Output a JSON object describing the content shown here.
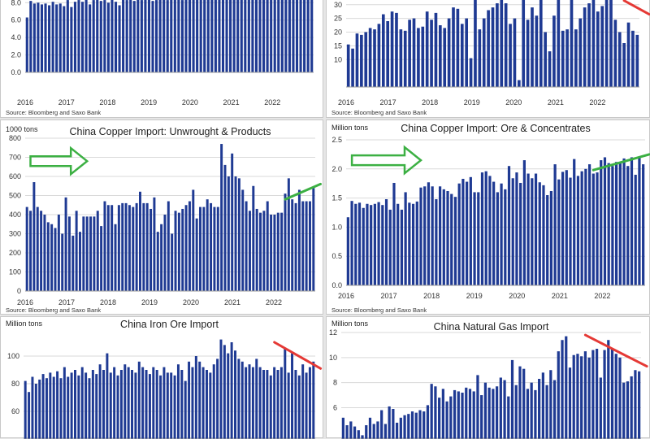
{
  "colors": {
    "bar": "#1f3a93",
    "up_arrow": "#3cb043",
    "down_line": "#e53935",
    "grid": "#d9d9d9",
    "axis_text": "#333333"
  },
  "chart_data": [
    {
      "id": "tl",
      "type": "bar",
      "title": "",
      "unit": "",
      "source": "Source: Bloomberg and Saxo Bank",
      "x_labels": [
        "2016",
        "2017",
        "2018",
        "2019",
        "2020",
        "2021",
        "2022"
      ],
      "ylim": [
        0,
        8.4
      ],
      "y_ticks": [
        0,
        2,
        4,
        6,
        8
      ],
      "y_tick_labels": [
        "0.0",
        "2.0",
        "4.0",
        "6.0",
        "8.0"
      ],
      "values": [
        6.3,
        8.2,
        7.9,
        8.0,
        7.8,
        7.9,
        7.7,
        8.1,
        7.8,
        7.9,
        7.6,
        8.3,
        7.5,
        8.1,
        8.3,
        8.1,
        8.4,
        7.8,
        8.3,
        8.4,
        8.2,
        8.3,
        8.0,
        8.4,
        8.1,
        7.7,
        8.4,
        8.3,
        8.4,
        8.2,
        8.4,
        8.3,
        8.4,
        8.4,
        8.2,
        8.3,
        8.4,
        8.4,
        8.3,
        8.4,
        8.4,
        8.4,
        8.3,
        8.4,
        8.4,
        8.4,
        8.4,
        8.4,
        8.4,
        8.4,
        8.4,
        8.4,
        8.4,
        8.4,
        8.4,
        8.4,
        8.4,
        8.4,
        8.4,
        8.4,
        8.4,
        8.4,
        8.4,
        8.4,
        8.4,
        8.4,
        8.4,
        8.4,
        8.4,
        8.4,
        8.4,
        8.4,
        8.4,
        8.4,
        8.4,
        8.4,
        8.4,
        8.4
      ],
      "grid": true
    },
    {
      "id": "tr",
      "type": "bar",
      "title": "",
      "unit": "",
      "source": "Source: Bloomberg and Saxo Bank",
      "x_labels": [
        "2016",
        "2017",
        "2018",
        "2019",
        "2020",
        "2021",
        "2022"
      ],
      "ylim": [
        0,
        32
      ],
      "y_ticks": [
        10,
        15,
        20,
        25,
        30
      ],
      "y_tick_labels": [
        "10",
        "15",
        "20",
        "25",
        "30"
      ],
      "values": [
        15.5,
        14.0,
        19.5,
        19.0,
        20.0,
        21.5,
        21.0,
        23.0,
        26.5,
        24.0,
        27.5,
        27.0,
        21.0,
        20.5,
        24.5,
        25.0,
        21.5,
        22.0,
        27.5,
        24.5,
        27.0,
        22.5,
        21.5,
        25.0,
        29.0,
        28.5,
        23.0,
        25.0,
        10.5,
        32.0,
        21.0,
        25.0,
        28.0,
        29.0,
        30.5,
        32.0,
        30.5,
        23.0,
        25.0,
        2.5,
        32.0,
        24.5,
        29.0,
        26.0,
        32.0,
        20.0,
        13.0,
        26.0,
        32.0,
        20.5,
        21.0,
        32.0,
        21.0,
        25.0,
        29.0,
        30.5,
        32.0,
        27.5,
        29.5,
        32.0,
        32.0,
        24.5,
        20.0,
        16.0,
        23.5,
        20.5,
        19.0
      ],
      "grid": true,
      "trend": {
        "type": "down",
        "from": [
          63,
          31.5
        ],
        "to": [
          67,
          26.5
        ]
      }
    },
    {
      "id": "ml",
      "type": "bar",
      "title": "China Copper Import: Unwrought & Products",
      "unit": "1000 tons",
      "source": "Source: Bloomberg and Saxo Bank",
      "x_labels": [
        "2016",
        "2017",
        "2018",
        "2019",
        "2020",
        "2021",
        "2022"
      ],
      "ylim": [
        0,
        800
      ],
      "y_ticks": [
        0,
        100,
        200,
        300,
        400,
        500,
        600,
        700,
        800
      ],
      "y_tick_labels": [
        "0",
        "100",
        "200",
        "300",
        "400",
        "500",
        "600",
        "700",
        "800"
      ],
      "values": [
        440,
        420,
        570,
        440,
        420,
        400,
        360,
        350,
        330,
        400,
        300,
        490,
        390,
        290,
        420,
        310,
        390,
        390,
        390,
        390,
        420,
        340,
        470,
        450,
        450,
        350,
        450,
        460,
        460,
        450,
        440,
        460,
        520,
        460,
        460,
        430,
        490,
        310,
        350,
        400,
        470,
        300,
        420,
        410,
        430,
        450,
        470,
        530,
        380,
        440,
        440,
        480,
        460,
        440,
        440,
        770,
        660,
        600,
        720,
        600,
        590,
        530,
        470,
        420,
        550,
        430,
        410,
        420,
        470,
        400,
        400,
        410,
        410,
        510,
        590,
        480,
        460,
        530,
        470,
        470,
        470,
        540
      ],
      "grid": true,
      "arrow": {
        "from": [
          1,
          680
        ],
        "to": [
          17,
          680
        ]
      },
      "trend": {
        "type": "up",
        "from": [
          73,
          480
        ],
        "to": [
          81,
          560
        ]
      }
    },
    {
      "id": "mr",
      "type": "bar",
      "title": "China Copper Import: Ore & Concentrates",
      "unit": "Million tons",
      "source": "Source: Bloomberg and Saxo Bank",
      "x_labels": [
        "2016",
        "2017",
        "2018",
        "2019",
        "2020",
        "2021",
        "2022"
      ],
      "ylim": [
        0,
        2.5
      ],
      "y_ticks": [
        0,
        0.5,
        1.0,
        1.5,
        2.0,
        2.5
      ],
      "y_tick_labels": [
        "0.0",
        "0.5",
        "1.0",
        "1.5",
        "2.0",
        "2.5"
      ],
      "values": [
        1.17,
        1.45,
        1.4,
        1.42,
        1.33,
        1.4,
        1.38,
        1.4,
        1.43,
        1.38,
        1.48,
        1.3,
        1.76,
        1.4,
        1.3,
        1.6,
        1.42,
        1.4,
        1.44,
        1.68,
        1.7,
        1.77,
        1.7,
        1.48,
        1.7,
        1.65,
        1.62,
        1.57,
        1.52,
        1.75,
        1.83,
        1.78,
        1.86,
        1.6,
        1.6,
        1.94,
        1.96,
        1.88,
        1.78,
        1.6,
        1.75,
        1.65,
        2.05,
        1.84,
        1.94,
        1.76,
        2.15,
        1.92,
        1.84,
        1.92,
        1.77,
        1.72,
        1.55,
        1.62,
        2.08,
        1.82,
        1.95,
        1.98,
        1.85,
        2.17,
        1.88,
        1.96,
        2.0,
        2.08,
        1.92,
        1.94,
        2.15,
        2.2,
        2.1,
        2.05,
        2.12,
        2.1,
        2.18,
        2.05,
        2.2,
        1.9,
        2.2,
        2.08
      ],
      "grid": true,
      "arrow": {
        "from": [
          1,
          2.15
        ],
        "to": [
          19,
          2.15
        ]
      },
      "trend": {
        "type": "up",
        "from": [
          64,
          1.98
        ],
        "to": [
          77,
          2.25
        ]
      }
    },
    {
      "id": "bl",
      "type": "bar",
      "title": "China Iron Ore Import",
      "unit": "Million tons",
      "source": "",
      "x_labels": [],
      "ylim": [
        40,
        120
      ],
      "y_ticks": [
        60,
        80,
        100
      ],
      "y_tick_labels": [
        "60",
        "80",
        "100"
      ],
      "values": [
        82,
        74,
        85,
        80,
        83,
        87,
        84,
        88,
        85,
        89,
        84,
        92,
        85,
        88,
        90,
        86,
        92,
        88,
        84,
        90,
        87,
        94,
        90,
        102,
        88,
        92,
        86,
        90,
        94,
        92,
        90,
        88,
        96,
        92,
        90,
        87,
        92,
        90,
        86,
        92,
        88,
        88,
        86,
        94,
        90,
        82,
        96,
        92,
        100,
        96,
        92,
        90,
        88,
        94,
        98,
        112,
        108,
        102,
        110,
        104,
        98,
        96,
        92,
        94,
        92,
        98,
        92,
        90,
        90,
        86,
        92,
        90,
        92,
        106,
        88,
        102,
        90,
        86,
        94,
        88,
        92,
        96
      ],
      "grid": true,
      "trend": {
        "type": "down",
        "from": [
          70,
          110
        ],
        "to": [
          81,
          91
        ]
      }
    },
    {
      "id": "br",
      "type": "bar",
      "title": "China Natural Gas Import",
      "unit": "Million tons",
      "source": "",
      "x_labels": [],
      "ylim": [
        3.5,
        12
      ],
      "y_ticks": [
        6,
        8,
        10,
        12
      ],
      "y_tick_labels": [
        "6",
        "8",
        "10",
        "12"
      ],
      "values": [
        5.2,
        4.6,
        4.9,
        4.5,
        4.2,
        3.8,
        4.6,
        5.2,
        4.7,
        4.9,
        5.8,
        4.7,
        6.1,
        5.9,
        4.8,
        5.2,
        5.4,
        5.5,
        5.7,
        5.6,
        5.8,
        5.7,
        6.2,
        7.9,
        7.7,
        6.8,
        7.5,
        6.5,
        6.9,
        7.4,
        7.3,
        7.2,
        7.6,
        7.5,
        7.3,
        8.6,
        7.0,
        8.0,
        7.6,
        7.5,
        7.7,
        8.4,
        8.2,
        6.9,
        9.8,
        7.8,
        9.3,
        9.1,
        7.5,
        8.0,
        7.4,
        8.3,
        8.8,
        7.8,
        9.0,
        8.2,
        10.5,
        11.4,
        11.7,
        9.2,
        10.2,
        10.3,
        10.1,
        10.5,
        10.0,
        10.6,
        10.7,
        8.4,
        10.6,
        11.4,
        10.7,
        10.3,
        10.0,
        8.0,
        8.1,
        8.5,
        9.0,
        8.9
      ],
      "grid": true,
      "trend": {
        "type": "down",
        "from": [
          63,
          11.8
        ],
        "to": [
          77,
          9.3
        ]
      }
    }
  ]
}
